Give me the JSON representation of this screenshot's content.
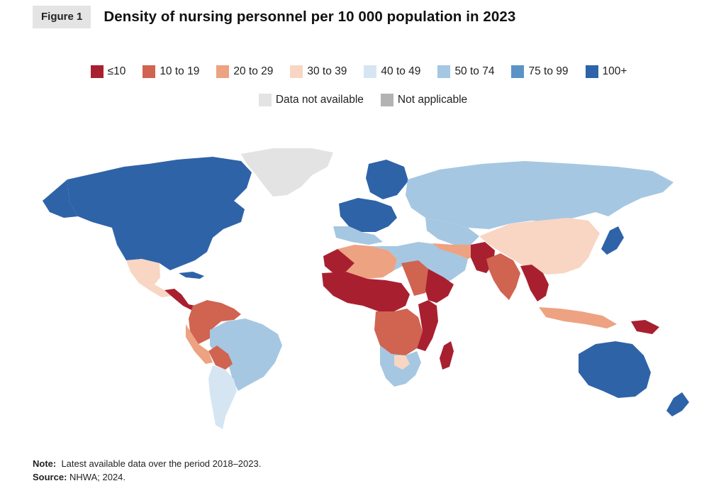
{
  "figure": {
    "badge": "Figure 1",
    "title": "Density of nursing personnel per 10 000 population in 2023"
  },
  "legend": {
    "row1": [
      {
        "label": "≤10",
        "color": "#a8202f"
      },
      {
        "label": "10 to 19",
        "color": "#d06451"
      },
      {
        "label": "20 to 29",
        "color": "#eda282"
      },
      {
        "label": "30 to 39",
        "color": "#f8d6c3"
      },
      {
        "label": "40 to 49",
        "color": "#d6e5f2"
      },
      {
        "label": "50 to 74",
        "color": "#a5c7e2"
      },
      {
        "label": "75 to 99",
        "color": "#5b93c6"
      },
      {
        "label": "100+",
        "color": "#2e63a8"
      }
    ],
    "row2": [
      {
        "label": "Data not available",
        "color": "#e3e3e3"
      },
      {
        "label": "Not applicable",
        "color": "#b3b3b3"
      }
    ]
  },
  "notes": {
    "note_label": "Note:",
    "note_text": "Latest available data over the period 2018–2023.",
    "source_label": "Source:",
    "source_text": "NHWA; 2024."
  }
}
